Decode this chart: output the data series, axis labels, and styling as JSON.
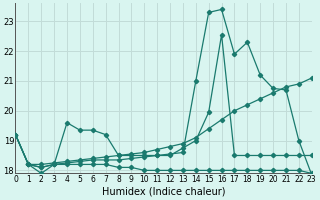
{
  "xlabel": "Humidex (Indice chaleur)",
  "bg_color": "#d9f5f0",
  "grid_color": "#c2dcd8",
  "line_color": "#1a7a6e",
  "x_min": 0,
  "x_max": 23,
  "y_min": 17.9,
  "y_max": 23.6,
  "yticks": [
    18,
    19,
    20,
    21,
    22,
    23
  ],
  "xticks": [
    0,
    1,
    2,
    3,
    4,
    5,
    6,
    7,
    8,
    9,
    10,
    11,
    12,
    13,
    14,
    15,
    16,
    17,
    18,
    19,
    20,
    21,
    22,
    23
  ],
  "series_flat_x": [
    0,
    1,
    2,
    3,
    4,
    5,
    6,
    7,
    8,
    9,
    10,
    11,
    12,
    13,
    14,
    15,
    16,
    17,
    18,
    19,
    20,
    21,
    22,
    23
  ],
  "series_flat_y": [
    19.2,
    18.2,
    17.9,
    18.2,
    18.2,
    18.2,
    18.2,
    18.2,
    18.1,
    18.1,
    18.0,
    18.0,
    18.0,
    18.0,
    18.0,
    18.0,
    18.0,
    18.0,
    18.0,
    18.0,
    18.0,
    18.0,
    18.0,
    17.9
  ],
  "series_rise_x": [
    0,
    1,
    2,
    3,
    4,
    5,
    6,
    7,
    8,
    9,
    10,
    11,
    12,
    13,
    14,
    15,
    16,
    17,
    18,
    19,
    20,
    21,
    22,
    23
  ],
  "series_rise_y": [
    19.2,
    18.2,
    18.2,
    18.25,
    18.3,
    18.35,
    18.4,
    18.45,
    18.5,
    18.55,
    18.6,
    18.7,
    18.8,
    18.9,
    19.1,
    19.4,
    19.7,
    20.0,
    20.2,
    20.4,
    20.6,
    20.8,
    20.9,
    21.1
  ],
  "series_main_x": [
    0,
    1,
    2,
    3,
    4,
    5,
    6,
    7,
    8,
    9,
    10,
    11,
    12,
    13,
    14,
    15,
    16,
    17,
    18,
    19,
    20,
    21,
    22,
    23
  ],
  "series_main_y": [
    19.2,
    18.2,
    18.1,
    18.2,
    18.25,
    18.3,
    18.35,
    18.35,
    18.35,
    18.4,
    18.45,
    18.5,
    18.55,
    18.6,
    21.0,
    23.3,
    23.4,
    21.9,
    22.3,
    21.2,
    20.75,
    20.7,
    19.0,
    17.85
  ],
  "series_mid_x": [
    0,
    1,
    2,
    3,
    4,
    5,
    6,
    7,
    8,
    9,
    10,
    11,
    12,
    13,
    14,
    15,
    16,
    17,
    18,
    19,
    20,
    21,
    22,
    23
  ],
  "series_mid_y": [
    19.2,
    18.2,
    18.1,
    18.2,
    19.6,
    19.35,
    19.35,
    19.2,
    18.5,
    18.5,
    18.5,
    18.5,
    18.5,
    18.75,
    19.0,
    19.95,
    22.55,
    18.5,
    18.5,
    18.5,
    18.5,
    18.5,
    18.5,
    18.5
  ]
}
